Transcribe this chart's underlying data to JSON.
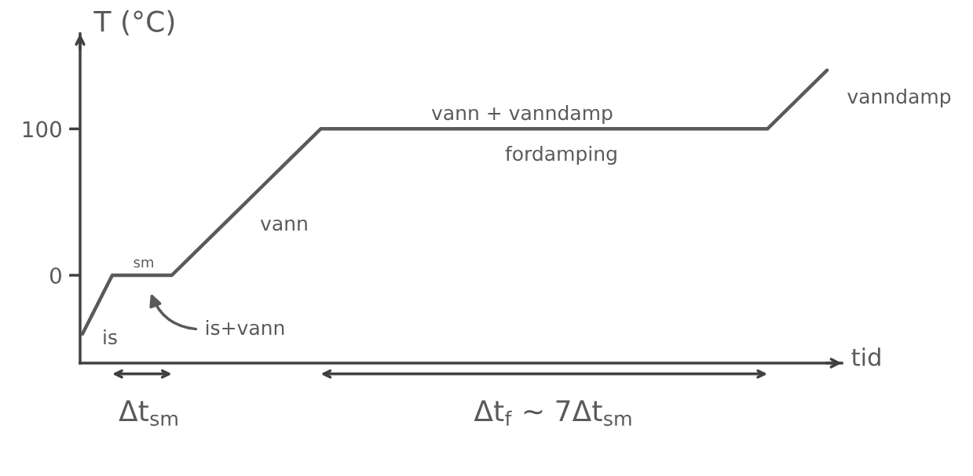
{
  "chart_data": {
    "type": "line",
    "xlabel": "tid",
    "ylabel": "T (°C)",
    "categories": [
      null,
      null,
      null,
      null,
      null,
      null,
      null,
      null,
      null,
      null,
      null,
      null,
      null,
      null,
      null,
      null,
      null,
      null,
      null,
      null,
      null,
      null,
      null,
      null,
      null,
      null
    ],
    "series": [
      {
        "color": "#585b59",
        "values": [
          -40,
          0,
          0,
          0,
          20,
          40,
          60,
          80,
          100,
          100,
          100,
          100,
          100,
          100,
          100,
          100,
          100,
          100,
          100,
          100,
          100,
          100,
          100,
          100,
          120,
          140
        ]
      }
    ],
    "ylim": [
      -60,
      165
    ],
    "yticks": [
      0,
      100
    ],
    "annotations": [
      "is",
      "sm",
      "is+vann",
      "vann",
      "vann + vanndamp",
      "fordamping",
      "vanndamp",
      "Δt$_{sm}$",
      "Δt$_{f}$ ~ 7Δt$_{sm}$"
    ]
  }
}
